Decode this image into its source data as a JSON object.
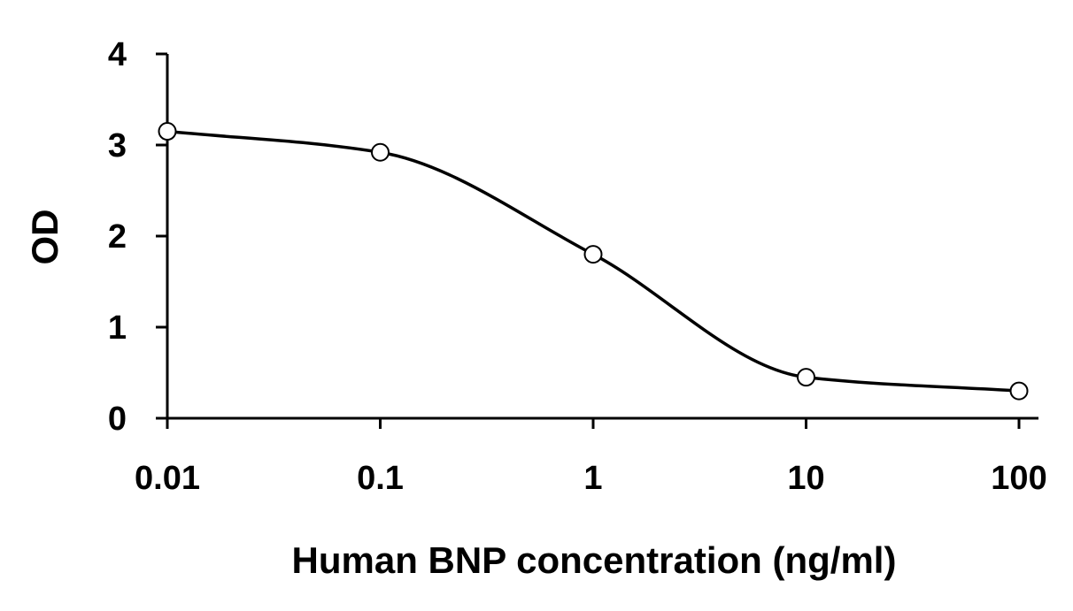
{
  "chart_data": {
    "type": "line",
    "title": "",
    "xlabel": "Human BNP concentration (ng/ml)",
    "ylabel": "OD",
    "x_scale": "log",
    "xlim": [
      0.01,
      100
    ],
    "ylim": [
      0,
      4
    ],
    "x_ticks": [
      0.01,
      0.1,
      1,
      10,
      100
    ],
    "x_tick_labels": [
      "0.01",
      "0.1",
      "1",
      "10",
      "100"
    ],
    "y_ticks": [
      0,
      1,
      2,
      3,
      4
    ],
    "y_tick_labels": [
      "0",
      "1",
      "2",
      "3",
      "4"
    ],
    "grid": false,
    "legend": "none",
    "series": [
      {
        "x": [
          0.01,
          0.1,
          1,
          10,
          100
        ],
        "y": [
          3.15,
          2.92,
          1.8,
          0.45,
          0.3
        ],
        "line_color": "#000000",
        "marker": "open-circle",
        "marker_fill": "#ffffff",
        "smooth": true
      }
    ]
  }
}
